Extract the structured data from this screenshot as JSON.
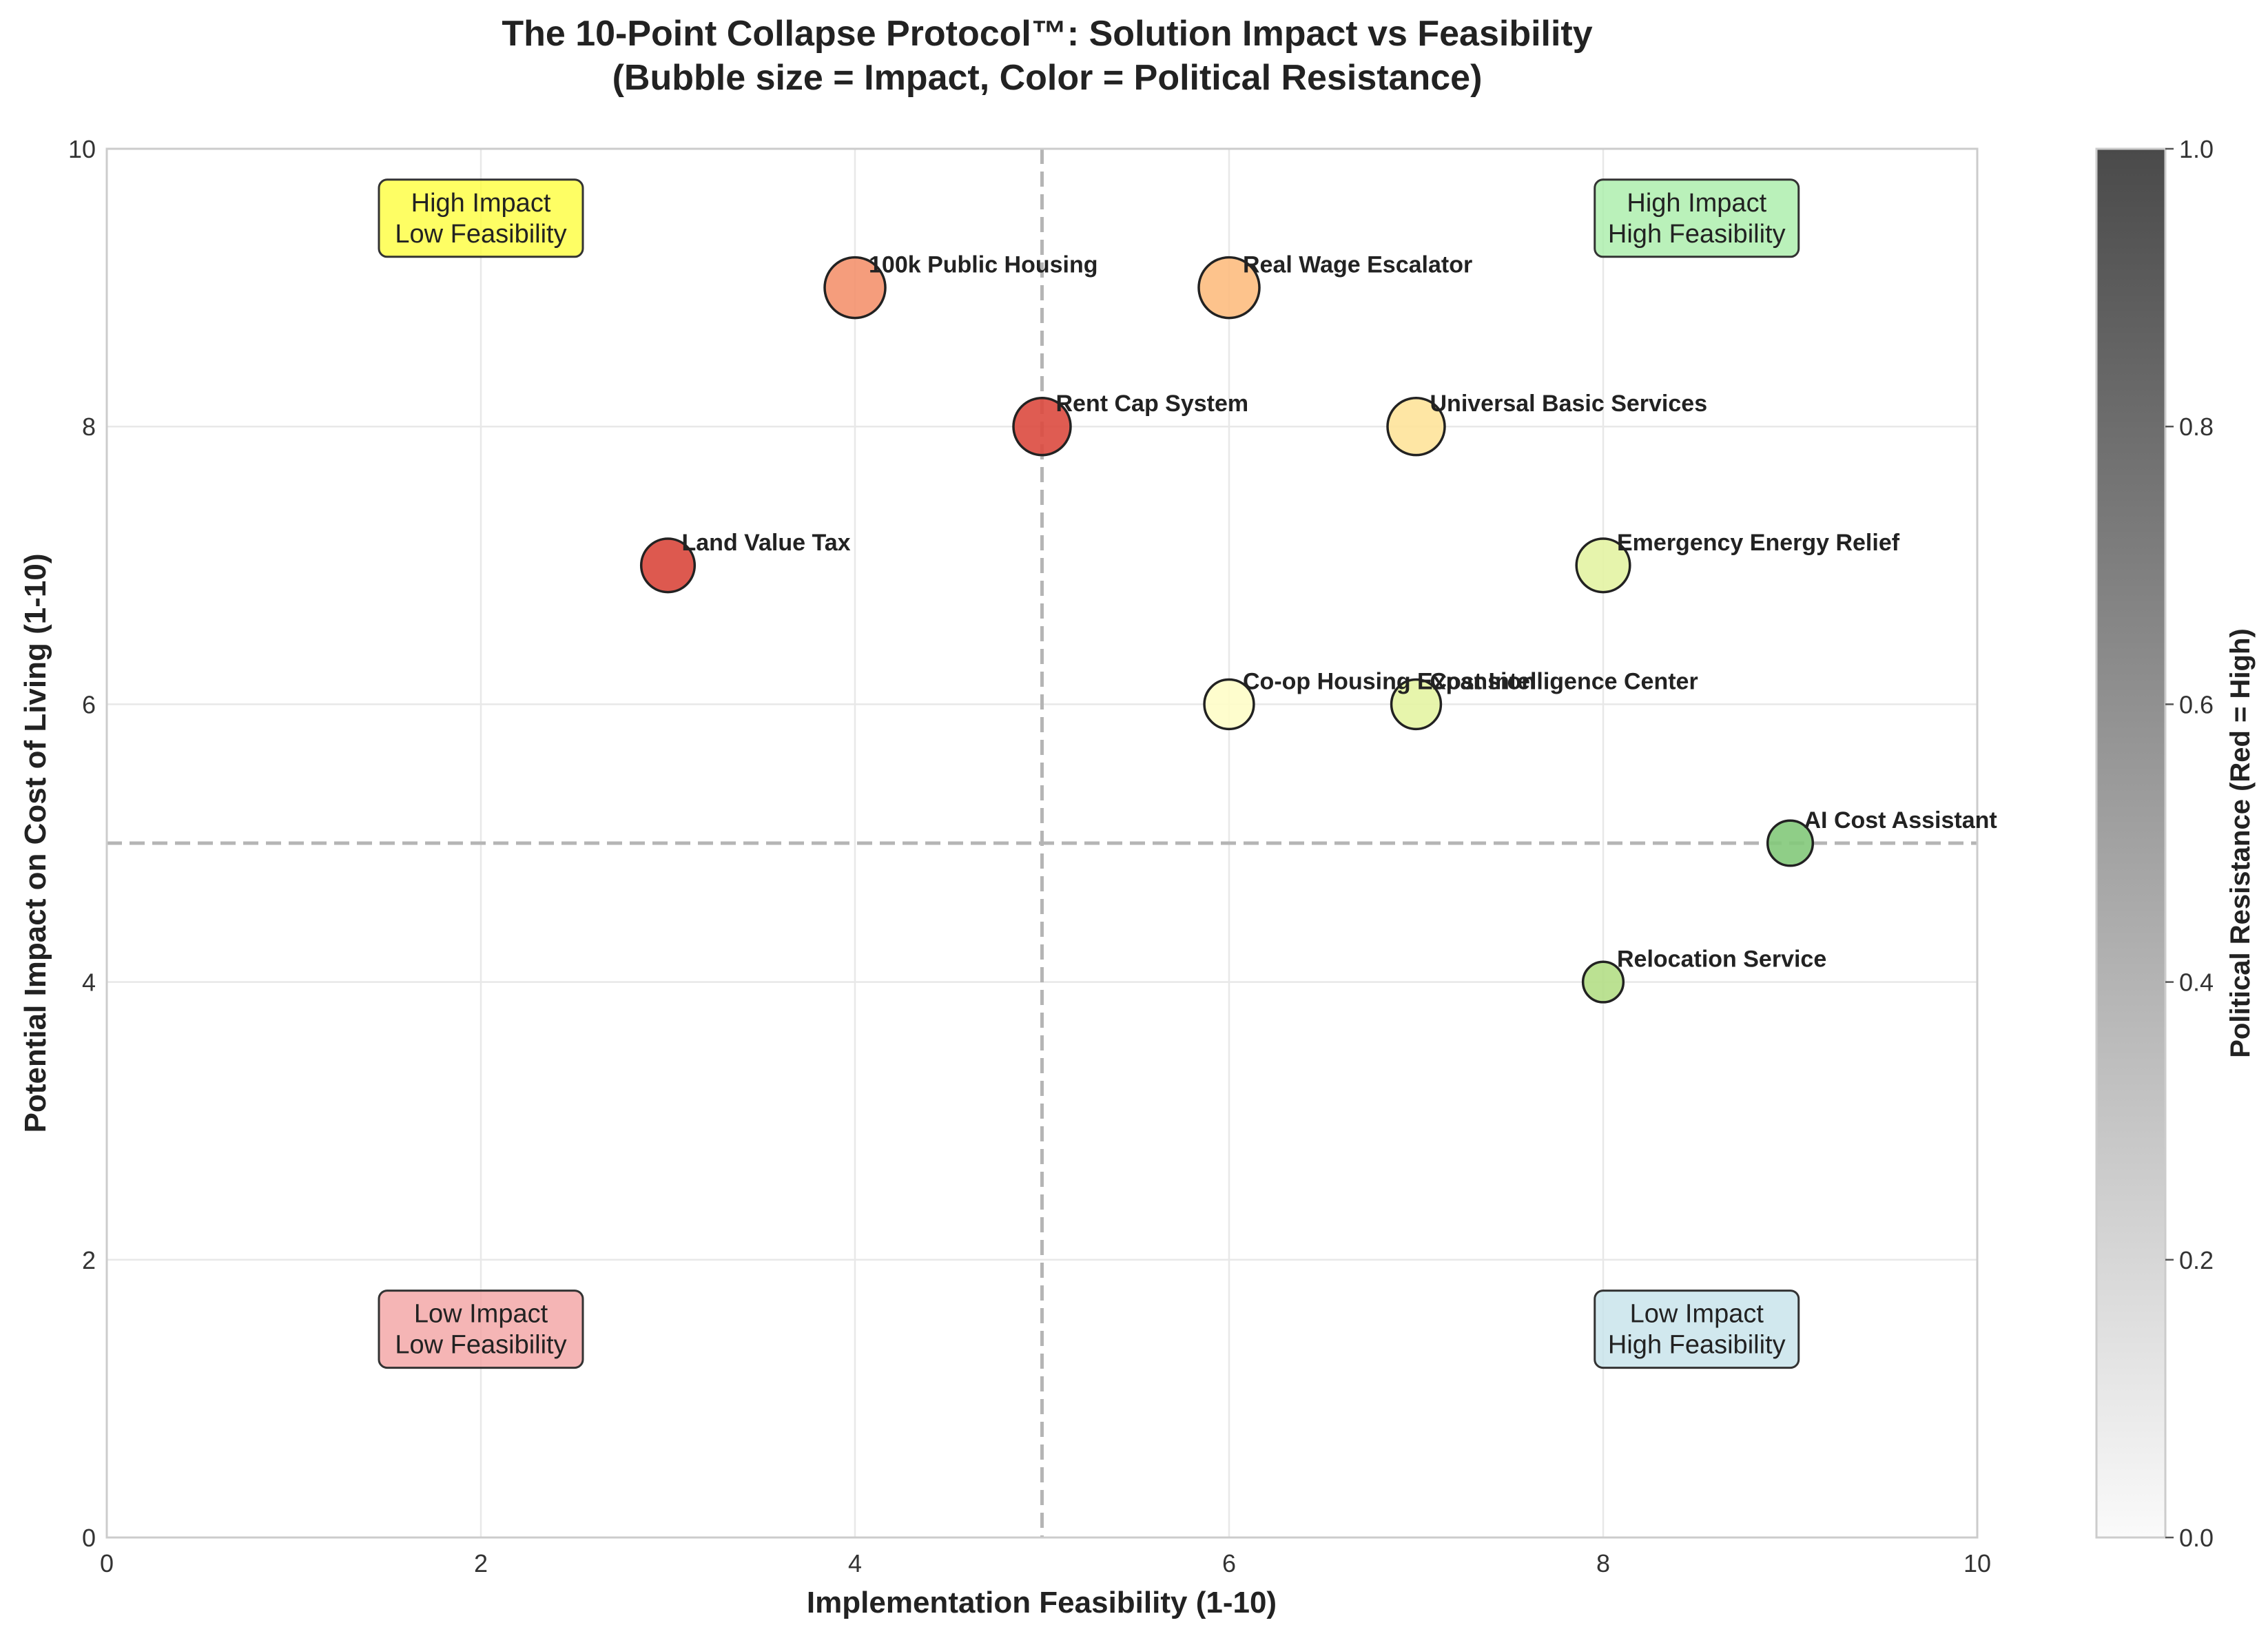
{
  "chart_data": {
    "type": "scatter",
    "title": "The 10-Point Collapse Protocol™: Solution Impact vs Feasibility",
    "subtitle": "(Bubble size = Impact, Color = Political Resistance)",
    "xlabel": "Implementation Feasibility (1-10)",
    "ylabel": "Potential Impact on Cost of Living (1-10)",
    "xlim": [
      0,
      10
    ],
    "ylim": [
      0,
      10
    ],
    "xticks": [
      "0",
      "2",
      "4",
      "6",
      "8",
      "10"
    ],
    "yticks": [
      "0",
      "2",
      "4",
      "6",
      "8",
      "10"
    ],
    "grid": true,
    "reference_lines": {
      "x": 5,
      "y": 5
    },
    "points": [
      {
        "name": "100k Public Housing",
        "x": 4,
        "y": 9,
        "resistance": 0.85,
        "color": "#f4926e"
      },
      {
        "name": "Real Wage Escalator",
        "x": 6,
        "y": 9,
        "resistance": 0.7,
        "color": "#fdbd80"
      },
      {
        "name": "Rent Cap System",
        "x": 5,
        "y": 8,
        "resistance": 0.95,
        "color": "#dc4a3f"
      },
      {
        "name": "Universal Basic Services",
        "x": 7,
        "y": 8,
        "resistance": 0.55,
        "color": "#fee39a"
      },
      {
        "name": "Land Value Tax",
        "x": 3,
        "y": 7,
        "resistance": 0.95,
        "color": "#d9473c"
      },
      {
        "name": "Emergency Energy Relief",
        "x": 8,
        "y": 7,
        "resistance": 0.35,
        "color": "#e3f3a3"
      },
      {
        "name": "Co-op Housing Expansion",
        "x": 6,
        "y": 6,
        "resistance": 0.45,
        "color": "#fefdc8"
      },
      {
        "name": "Cost Intelligence Center",
        "x": 7,
        "y": 6,
        "resistance": 0.35,
        "color": "#e4f4a3"
      },
      {
        "name": "AI Cost Assistant",
        "x": 9,
        "y": 5,
        "resistance": 0.1,
        "color": "#83c97a"
      },
      {
        "name": "Relocation Service",
        "x": 8,
        "y": 4,
        "resistance": 0.2,
        "color": "#b4de86"
      }
    ],
    "quadrant_labels": [
      {
        "line1": "High Impact",
        "line2": "Low Feasibility",
        "x": 2,
        "y": 9.5,
        "color": "#fefe3d"
      },
      {
        "line1": "High Impact",
        "line2": "High Feasibility",
        "x": 8.5,
        "y": 9.5,
        "color": "#a9eea9"
      },
      {
        "line1": "Low Impact",
        "line2": "Low Feasibility",
        "x": 2,
        "y": 1.5,
        "color": "#f2a2a2"
      },
      {
        "line1": "Low Impact",
        "line2": "High Feasibility",
        "x": 8.5,
        "y": 1.5,
        "color": "#c5e2ea"
      }
    ],
    "colorbar": {
      "label": "Political Resistance (Red = High)",
      "range": [
        0,
        1
      ],
      "ticks": [
        "0.0",
        "0.2",
        "0.4",
        "0.6",
        "0.8",
        "1.0"
      ],
      "color_low": "#fafafa",
      "color_high": "#4a4a4a"
    }
  }
}
